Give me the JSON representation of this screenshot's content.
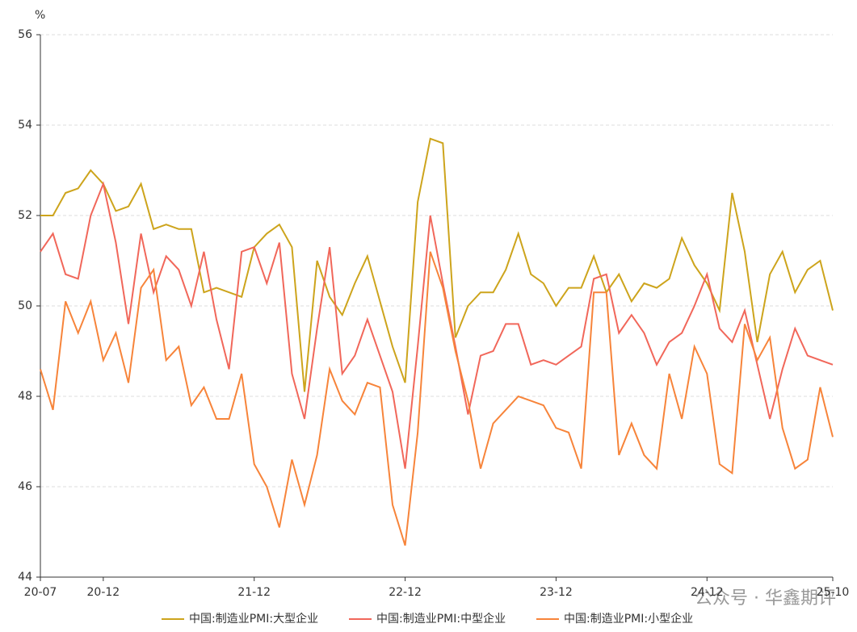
{
  "chart_data": {
    "type": "line",
    "y_unit": "%",
    "categories": [
      "20-07",
      null,
      null,
      null,
      null,
      "20-12",
      null,
      null,
      null,
      null,
      null,
      null,
      null,
      null,
      null,
      null,
      null,
      "21-12",
      null,
      null,
      null,
      null,
      null,
      null,
      null,
      null,
      null,
      null,
      null,
      "22-12",
      null,
      null,
      null,
      null,
      null,
      null,
      null,
      null,
      null,
      null,
      null,
      "23-12",
      null,
      null,
      null,
      null,
      null,
      null,
      null,
      null,
      null,
      null,
      null,
      "24-12",
      null,
      null,
      null,
      null,
      null,
      null,
      null,
      null,
      null,
      "25-10"
    ],
    "series": [
      {
        "name": "中国:制造业PMI:大型企业",
        "color": "#cda41c",
        "values": [
          52.0,
          52.0,
          52.5,
          52.6,
          53.0,
          52.7,
          52.1,
          52.2,
          52.7,
          51.7,
          51.8,
          51.7,
          51.7,
          50.3,
          50.4,
          50.3,
          50.2,
          51.3,
          51.6,
          51.8,
          51.3,
          48.1,
          51.0,
          50.2,
          49.8,
          50.5,
          51.1,
          50.1,
          49.1,
          48.3,
          52.3,
          53.7,
          53.6,
          49.3,
          50.0,
          50.3,
          50.3,
          50.8,
          51.6,
          50.7,
          50.5,
          50.0,
          50.4,
          50.4,
          51.1,
          50.3,
          50.7,
          50.1,
          50.5,
          50.4,
          50.6,
          51.5,
          50.9,
          50.5,
          49.9,
          52.5,
          51.2,
          49.2,
          50.7,
          51.2,
          50.3,
          50.8,
          51.0,
          49.9
        ]
      },
      {
        "name": "中国:制造业PMI:中型企业",
        "color": "#f1675a",
        "values": [
          51.2,
          51.6,
          50.7,
          50.6,
          52.0,
          52.7,
          51.4,
          49.6,
          51.6,
          50.3,
          51.1,
          50.8,
          50.0,
          51.2,
          49.7,
          48.6,
          51.2,
          51.3,
          50.5,
          51.4,
          48.5,
          47.5,
          49.5,
          51.3,
          48.5,
          48.9,
          49.7,
          48.9,
          48.1,
          46.4,
          49.1,
          52.0,
          50.5,
          49.1,
          47.6,
          48.9,
          49.0,
          49.6,
          49.6,
          48.7,
          48.8,
          48.7,
          48.9,
          49.1,
          50.6,
          50.7,
          49.4,
          49.8,
          49.4,
          48.7,
          49.2,
          49.4,
          50.0,
          50.7,
          49.5,
          49.2,
          49.9,
          48.7,
          47.5,
          48.6,
          49.5,
          48.9,
          48.8,
          48.7
        ]
      },
      {
        "name": "中国:制造业PMI:小型企业",
        "color": "#f7843a",
        "values": [
          48.6,
          47.7,
          50.1,
          49.4,
          50.1,
          48.8,
          49.4,
          48.3,
          50.4,
          50.8,
          48.8,
          49.1,
          47.8,
          48.2,
          47.5,
          47.5,
          48.5,
          46.5,
          46.0,
          45.1,
          46.6,
          45.6,
          46.7,
          48.6,
          47.9,
          47.6,
          48.3,
          48.2,
          45.6,
          44.7,
          47.2,
          51.2,
          50.4,
          49.0,
          47.9,
          46.4,
          47.4,
          47.7,
          48.0,
          47.9,
          47.8,
          47.3,
          47.2,
          46.4,
          50.3,
          50.3,
          46.7,
          47.4,
          46.7,
          46.4,
          48.5,
          47.5,
          49.1,
          48.5,
          46.5,
          46.3,
          49.6,
          48.8,
          49.3,
          47.3,
          46.4,
          46.6,
          48.2,
          47.1
        ]
      }
    ],
    "ylim": [
      44,
      56
    ],
    "yticks": [
      44,
      46,
      48,
      50,
      52,
      54,
      56
    ],
    "grid": true,
    "legend": "bottom",
    "watermark": "公众号 · 华鑫期评"
  }
}
